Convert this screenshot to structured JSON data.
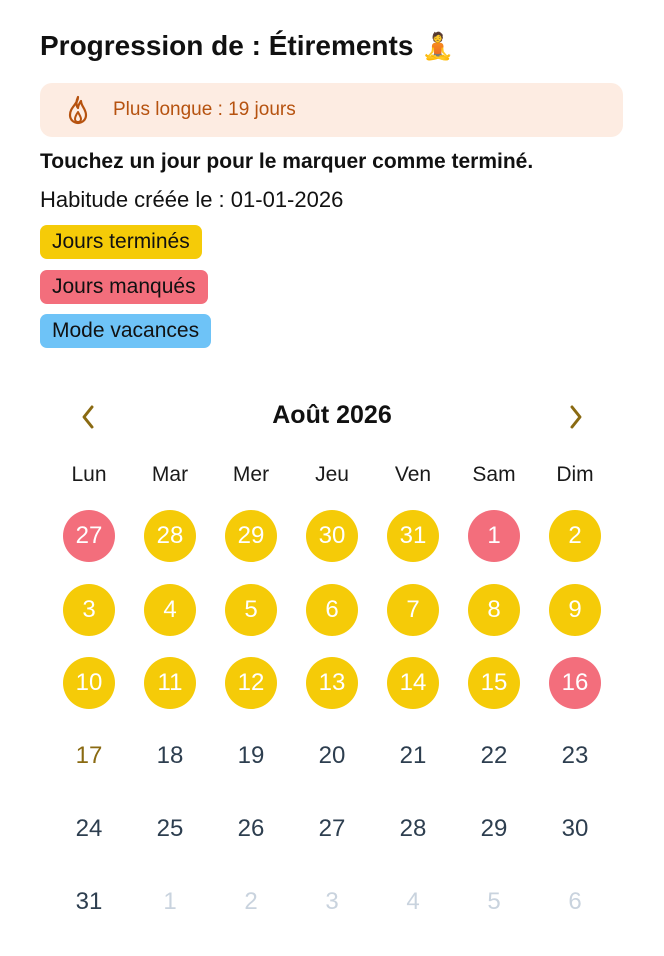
{
  "header": {
    "title": "Progression de : Étirements",
    "emoji": "🧘"
  },
  "streak": {
    "text": "Plus longue : 19 jours",
    "icon": "flame-icon",
    "color": "#b6520f"
  },
  "instruction": "Touchez un jour pour le marquer comme terminé.",
  "created_label": "Habitude créée le : 01-01-2026",
  "legend": [
    {
      "label": "Jours terminés",
      "color": "#f5cb08"
    },
    {
      "label": "Jours manqués",
      "color": "#f36e7c"
    },
    {
      "label": "Mode vacances",
      "color": "#6ec3f7"
    }
  ],
  "calendar": {
    "month_label": "Août 2026",
    "weekdays": [
      "Lun",
      "Mar",
      "Mer",
      "Jeu",
      "Ven",
      "Sam",
      "Dim"
    ],
    "weeks": [
      [
        {
          "d": "27",
          "s": "missed"
        },
        {
          "d": "28",
          "s": "done"
        },
        {
          "d": "29",
          "s": "done"
        },
        {
          "d": "30",
          "s": "done"
        },
        {
          "d": "31",
          "s": "done"
        },
        {
          "d": "1",
          "s": "missed"
        },
        {
          "d": "2",
          "s": "done"
        }
      ],
      [
        {
          "d": "3",
          "s": "done"
        },
        {
          "d": "4",
          "s": "done"
        },
        {
          "d": "5",
          "s": "done"
        },
        {
          "d": "6",
          "s": "done"
        },
        {
          "d": "7",
          "s": "done"
        },
        {
          "d": "8",
          "s": "done"
        },
        {
          "d": "9",
          "s": "done"
        }
      ],
      [
        {
          "d": "10",
          "s": "done"
        },
        {
          "d": "11",
          "s": "done"
        },
        {
          "d": "12",
          "s": "done"
        },
        {
          "d": "13",
          "s": "done"
        },
        {
          "d": "14",
          "s": "done"
        },
        {
          "d": "15",
          "s": "done"
        },
        {
          "d": "16",
          "s": "missed"
        }
      ],
      [
        {
          "d": "17",
          "s": "today"
        },
        {
          "d": "18",
          "s": "none"
        },
        {
          "d": "19",
          "s": "none"
        },
        {
          "d": "20",
          "s": "none"
        },
        {
          "d": "21",
          "s": "none"
        },
        {
          "d": "22",
          "s": "none"
        },
        {
          "d": "23",
          "s": "none"
        }
      ],
      [
        {
          "d": "24",
          "s": "none"
        },
        {
          "d": "25",
          "s": "none"
        },
        {
          "d": "26",
          "s": "none"
        },
        {
          "d": "27",
          "s": "none"
        },
        {
          "d": "28",
          "s": "none"
        },
        {
          "d": "29",
          "s": "none"
        },
        {
          "d": "30",
          "s": "none"
        }
      ],
      [
        {
          "d": "31",
          "s": "none"
        },
        {
          "d": "1",
          "s": "other"
        },
        {
          "d": "2",
          "s": "other"
        },
        {
          "d": "3",
          "s": "other"
        },
        {
          "d": "4",
          "s": "other"
        },
        {
          "d": "5",
          "s": "other"
        },
        {
          "d": "6",
          "s": "other"
        }
      ]
    ]
  },
  "colors": {
    "done": "#f5cb08",
    "missed": "#f36e7c",
    "vacation": "#6ec3f7",
    "accent": "#8a6a12"
  }
}
